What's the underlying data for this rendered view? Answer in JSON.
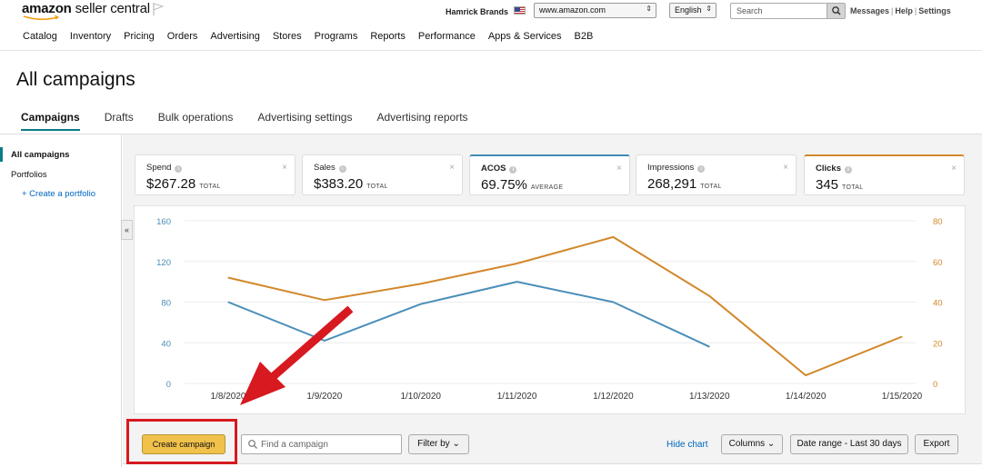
{
  "header": {
    "logo_part1": "amazon",
    "logo_part2": "seller central",
    "brand_name": "Hamrick Brands",
    "marketplace": "www.amazon.com",
    "language": "English",
    "search_placeholder": "Search",
    "links": [
      "Messages",
      "Help",
      "Settings"
    ],
    "nav": [
      "Catalog",
      "Inventory",
      "Pricing",
      "Orders",
      "Advertising",
      "Stores",
      "Programs",
      "Reports",
      "Performance",
      "Apps & Services",
      "B2B"
    ]
  },
  "page": {
    "title": "All campaigns",
    "tabs": [
      "Campaigns",
      "Drafts",
      "Bulk operations",
      "Advertising settings",
      "Advertising reports"
    ]
  },
  "sidebar": {
    "items": [
      "All campaigns",
      "Portfolios",
      "+ Create a portfolio"
    ],
    "collapse_glyph": "«"
  },
  "metrics": [
    {
      "label": "Spend",
      "value": "$267.28",
      "unit": "TOTAL"
    },
    {
      "label": "Sales",
      "value": "$383.20",
      "unit": "TOTAL"
    },
    {
      "label": "ACOS",
      "value": "69.75%",
      "unit": "AVERAGE"
    },
    {
      "label": "Impressions",
      "value": "268,291",
      "unit": "TOTAL"
    },
    {
      "label": "Clicks",
      "value": "345",
      "unit": "TOTAL"
    }
  ],
  "toolbar": {
    "create_campaign": "Create campaign",
    "find_placeholder": "Find a campaign",
    "filter_by": "Filter by",
    "hide_chart": "Hide chart",
    "columns": "Columns",
    "date_range": "Date range - Last 30 days",
    "export": "Export"
  },
  "colors": {
    "acos_line": "#4a8eb8",
    "clicks_line": "#d2882b",
    "annotation": "#d71920",
    "create_button": "#f0c14b"
  },
  "chart_data": {
    "type": "line",
    "categories": [
      "1/8/2020",
      "1/9/2020",
      "1/10/2020",
      "1/11/2020",
      "1/12/2020",
      "1/13/2020",
      "1/14/2020",
      "1/15/2020"
    ],
    "left_ticks": [
      "160",
      "120",
      "80",
      "40",
      "0"
    ],
    "right_ticks": [
      "80",
      "60",
      "40",
      "20",
      "0"
    ],
    "ylim_left": [
      0,
      160
    ],
    "ylim_right": [
      0,
      80
    ],
    "grid": true,
    "series": [
      {
        "axis": "left",
        "color": "#4a8eb8",
        "values": [
          80,
          42,
          78,
          100,
          80,
          36,
          null,
          null
        ]
      },
      {
        "axis": "right",
        "color": "#d2882b",
        "values": [
          52,
          41,
          49,
          59,
          72,
          43,
          4,
          23
        ]
      }
    ]
  }
}
